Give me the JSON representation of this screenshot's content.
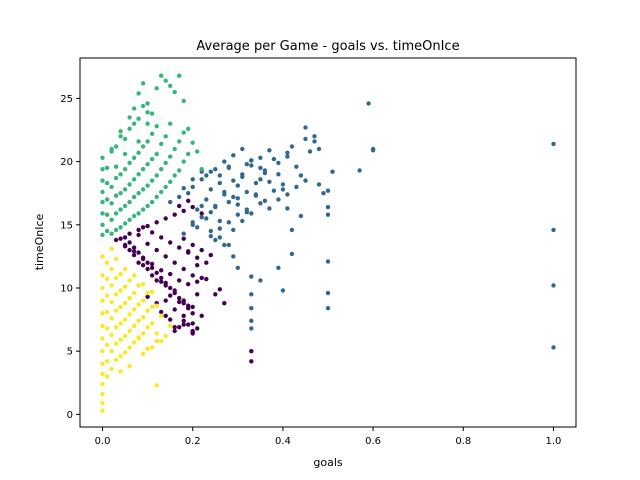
{
  "chart_data": {
    "type": "scatter",
    "title": "Average per Game - goals vs. timeOnIce",
    "xlabel": "goals",
    "ylabel": "timeOnIce",
    "xlim": [
      -0.05,
      1.05
    ],
    "ylim": [
      -1.0,
      28.2
    ],
    "xticks": [
      0.0,
      0.2,
      0.4,
      0.6,
      0.8,
      1.0
    ],
    "xtick_labels": [
      "0.0",
      "0.2",
      "0.4",
      "0.6",
      "0.8",
      "1.0"
    ],
    "yticks": [
      0,
      5,
      10,
      15,
      20,
      25
    ],
    "ytick_labels": [
      "0",
      "5",
      "10",
      "15",
      "20",
      "25"
    ],
    "grid": false,
    "legend": "none",
    "point_color_scale": "viridis",
    "series": [
      {
        "color": "#440154",
        "values_x": [
          0.06,
          0.07,
          0.08,
          0.09,
          0.1,
          0.11,
          0.12,
          0.13,
          0.14,
          0.15,
          0.16,
          0.17,
          0.18,
          0.19,
          0.2,
          0.05,
          0.06,
          0.08,
          0.1,
          0.12,
          0.14,
          0.16,
          0.18,
          0.2,
          0.22,
          0.04,
          0.06,
          0.08,
          0.1,
          0.12,
          0.14,
          0.16,
          0.18,
          0.2,
          0.21,
          0.05,
          0.07,
          0.09,
          0.11,
          0.13,
          0.15,
          0.17,
          0.19,
          0.21,
          0.08,
          0.1,
          0.12,
          0.14,
          0.16,
          0.18,
          0.2,
          0.22,
          0.1,
          0.12,
          0.14,
          0.16,
          0.18,
          0.2,
          0.13,
          0.15,
          0.17,
          0.19,
          0.21,
          0.14,
          0.16,
          0.18,
          0.2,
          0.16,
          0.18,
          0.2,
          0.17,
          0.19,
          0.03,
          0.05,
          0.07,
          0.09,
          0.11,
          0.13,
          0.15,
          0.17,
          0.19,
          0.09,
          0.11,
          0.13,
          0.15,
          0.17,
          0.19,
          0.21,
          0.23,
          0.18,
          0.2,
          0.22,
          0.24,
          0.25,
          0.27,
          0.19,
          0.21,
          0.23,
          0.33,
          0.33,
          0.26,
          0.22,
          0.2
        ],
        "values_y": [
          13.6,
          13.2,
          12.8,
          12.4,
          12.0,
          11.6,
          11.2,
          10.8,
          10.4,
          10.0,
          9.6,
          9.2,
          8.8,
          8.4,
          8.0,
          14.0,
          14.3,
          14.6,
          14.9,
          15.2,
          15.5,
          15.8,
          16.1,
          16.4,
          15.9,
          13.9,
          13.0,
          12.0,
          11.5,
          10.6,
          10.2,
          9.8,
          9.0,
          8.5,
          9.5,
          13.4,
          12.6,
          11.8,
          11.0,
          10.5,
          9.4,
          8.9,
          8.6,
          10.5,
          14.2,
          13.5,
          13.0,
          12.5,
          12.0,
          11.5,
          11.0,
          10.8,
          9.3,
          8.8,
          9.0,
          8.3,
          7.8,
          7.2,
          8.1,
          7.5,
          6.9,
          7.1,
          6.8,
          7.8,
          6.6,
          7.4,
          6.4,
          6.9,
          7.1,
          6.5,
          16.5,
          16.9,
          13.8,
          13.3,
          12.9,
          12.3,
          11.9,
          11.4,
          11.1,
          10.6,
          10.3,
          14.8,
          14.4,
          14.0,
          13.6,
          13.2,
          12.8,
          12.4,
          12.0,
          13.9,
          13.4,
          13.0,
          12.6,
          9.5,
          8.8,
          12.9,
          11.8,
          10.7,
          5.0,
          4.2,
          9.9,
          7.8,
          6.6
        ]
      },
      {
        "color": "#31688e",
        "values_x": [
          0.15,
          0.17,
          0.19,
          0.2,
          0.21,
          0.22,
          0.23,
          0.24,
          0.25,
          0.26,
          0.27,
          0.28,
          0.29,
          0.3,
          0.31,
          0.32,
          0.33,
          0.34,
          0.35,
          0.36,
          0.37,
          0.38,
          0.39,
          0.4,
          0.41,
          0.42,
          0.43,
          0.44,
          0.45,
          0.46,
          0.48,
          0.5,
          0.51,
          0.57,
          0.6,
          0.2,
          0.22,
          0.24,
          0.26,
          0.28,
          0.3,
          0.32,
          0.34,
          0.36,
          0.38,
          0.4,
          0.18,
          0.2,
          0.22,
          0.24,
          0.26,
          0.28,
          0.3,
          0.32,
          0.34,
          0.36,
          0.21,
          0.23,
          0.25,
          0.27,
          0.29,
          0.31,
          0.33,
          0.35,
          0.24,
          0.26,
          0.28,
          0.3,
          0.32,
          0.25,
          0.27,
          0.29,
          0.31,
          0.33,
          0.35,
          0.37,
          0.39,
          0.41,
          0.43,
          0.45,
          0.23,
          0.25,
          0.27,
          0.29,
          0.31,
          0.33,
          0.35,
          0.37,
          0.39,
          0.41,
          0.18,
          0.2,
          0.22,
          0.47,
          0.48,
          0.49,
          0.5,
          0.5,
          0.5,
          0.5,
          0.5,
          0.47,
          0.45,
          0.42,
          0.42,
          0.4,
          0.39,
          0.35,
          0.33,
          0.33,
          0.33,
          0.33,
          0.33,
          0.3,
          0.29,
          0.28,
          0.24,
          0.26,
          1.0,
          1.0,
          1.0,
          1.0,
          0.59,
          0.6,
          0.41,
          0.44
        ],
        "values_y": [
          16.8,
          17.2,
          17.5,
          18.0,
          16.2,
          18.6,
          17.0,
          19.2,
          16.5,
          18.3,
          17.6,
          19.5,
          17.2,
          16.6,
          18.8,
          19.8,
          20.1,
          17.3,
          18.6,
          19.1,
          18.4,
          20.2,
          19.0,
          17.8,
          20.4,
          21.2,
          19.6,
          18.9,
          21.8,
          20.8,
          21.0,
          17.7,
          19.2,
          19.3,
          21.0,
          15.0,
          15.6,
          16.0,
          15.3,
          16.8,
          17.1,
          16.2,
          17.4,
          16.9,
          17.7,
          18.2,
          14.3,
          15.2,
          16.5,
          17.8,
          18.9,
          19.6,
          18.1,
          17.6,
          18.3,
          19.3,
          14.8,
          15.5,
          16.4,
          17.4,
          18.5,
          19.0,
          19.7,
          20.3,
          14.1,
          14.7,
          15.2,
          15.8,
          16.0,
          13.8,
          13.4,
          14.6,
          15.3,
          15.9,
          16.7,
          16.3,
          17.0,
          17.4,
          18.0,
          18.5,
          18.9,
          19.4,
          20.0,
          20.5,
          21.0,
          20.1,
          19.5,
          20.9,
          19.9,
          20.7,
          17.9,
          18.6,
          19.2,
          22.0,
          18.2,
          17.5,
          16.4,
          15.8,
          12.1,
          9.6,
          8.4,
          21.6,
          22.7,
          14.6,
          12.7,
          9.8,
          11.6,
          10.6,
          7.4,
          6.8,
          8.4,
          9.5,
          10.9,
          11.6,
          12.5,
          13.4,
          14.5,
          14.0,
          21.4,
          14.6,
          10.2,
          5.3,
          24.6,
          20.9,
          16.3,
          15.7
        ]
      },
      {
        "color": "#35b779",
        "values_x": [
          0.0,
          0.0,
          0.0,
          0.0,
          0.0,
          0.0,
          0.0,
          0.0,
          0.01,
          0.01,
          0.01,
          0.01,
          0.01,
          0.02,
          0.02,
          0.02,
          0.02,
          0.02,
          0.03,
          0.03,
          0.03,
          0.03,
          0.03,
          0.04,
          0.04,
          0.04,
          0.04,
          0.04,
          0.05,
          0.05,
          0.05,
          0.05,
          0.05,
          0.06,
          0.06,
          0.06,
          0.06,
          0.06,
          0.07,
          0.07,
          0.07,
          0.07,
          0.07,
          0.08,
          0.08,
          0.08,
          0.08,
          0.08,
          0.09,
          0.09,
          0.09,
          0.09,
          0.09,
          0.1,
          0.1,
          0.1,
          0.1,
          0.1,
          0.11,
          0.11,
          0.11,
          0.11,
          0.12,
          0.12,
          0.12,
          0.12,
          0.13,
          0.13,
          0.13,
          0.14,
          0.14,
          0.14,
          0.15,
          0.15,
          0.15,
          0.16,
          0.16,
          0.17,
          0.17,
          0.18,
          0.18,
          0.19,
          0.2,
          0.21,
          0.22,
          0.08,
          0.09,
          0.1,
          0.12,
          0.13,
          0.14,
          0.15,
          0.16,
          0.17,
          0.18,
          0.19,
          0.06,
          0.07,
          0.11,
          0.03,
          0.05,
          0.02,
          0.04,
          0.08,
          0.1
        ],
        "values_y": [
          14.2,
          15.0,
          15.9,
          16.8,
          17.6,
          18.5,
          19.4,
          20.3,
          14.5,
          15.8,
          17.0,
          18.3,
          19.5,
          14.3,
          15.4,
          16.7,
          18.0,
          20.8,
          14.6,
          15.9,
          17.3,
          18.7,
          21.2,
          14.8,
          16.2,
          17.5,
          19.0,
          22.0,
          15.1,
          16.5,
          17.8,
          19.4,
          21.8,
          15.4,
          16.8,
          18.2,
          19.9,
          22.6,
          15.7,
          17.2,
          18.6,
          20.3,
          23.0,
          15.9,
          17.5,
          19.0,
          20.7,
          23.4,
          16.2,
          17.8,
          19.4,
          21.2,
          24.4,
          16.5,
          18.1,
          19.8,
          21.6,
          23.9,
          16.8,
          18.5,
          20.2,
          22.2,
          17.2,
          18.9,
          20.6,
          22.8,
          17.6,
          19.4,
          21.4,
          18.0,
          19.9,
          22.0,
          18.4,
          20.4,
          23.0,
          18.9,
          21.0,
          19.3,
          21.6,
          20.0,
          22.3,
          20.6,
          21.5,
          20.8,
          19.4,
          25.4,
          26.2,
          24.6,
          25.8,
          26.8,
          26.4,
          26.0,
          25.5,
          26.8,
          24.8,
          22.6,
          23.5,
          24.2,
          23.8,
          19.6,
          20.6,
          21.0,
          22.4,
          21.6,
          23.0
        ]
      },
      {
        "color": "#fde725",
        "values_x": [
          0.0,
          0.0,
          0.0,
          0.0,
          0.0,
          0.0,
          0.0,
          0.0,
          0.0,
          0.0,
          0.0,
          0.0,
          0.0,
          0.0,
          0.01,
          0.01,
          0.01,
          0.01,
          0.01,
          0.01,
          0.01,
          0.01,
          0.02,
          0.02,
          0.02,
          0.02,
          0.02,
          0.02,
          0.02,
          0.03,
          0.03,
          0.03,
          0.03,
          0.03,
          0.03,
          0.03,
          0.04,
          0.04,
          0.04,
          0.04,
          0.04,
          0.04,
          0.05,
          0.05,
          0.05,
          0.05,
          0.05,
          0.05,
          0.06,
          0.06,
          0.06,
          0.06,
          0.06,
          0.07,
          0.07,
          0.07,
          0.07,
          0.07,
          0.08,
          0.08,
          0.08,
          0.08,
          0.09,
          0.09,
          0.09,
          0.09,
          0.1,
          0.1,
          0.1,
          0.11,
          0.11,
          0.11,
          0.12,
          0.12,
          0.12,
          0.13,
          0.13,
          0.14,
          0.15,
          0.09,
          0.11,
          0.12,
          0.1,
          0.08,
          0.06,
          0.04,
          0.02
        ],
        "values_y": [
          0.3,
          0.9,
          1.6,
          2.4,
          3.2,
          4.0,
          5.0,
          6.0,
          7.0,
          8.0,
          9.0,
          10.0,
          11.0,
          12.5,
          3.0,
          4.2,
          5.5,
          6.8,
          8.1,
          9.4,
          10.7,
          12.0,
          3.6,
          5.0,
          6.3,
          7.6,
          8.9,
          10.2,
          11.5,
          4.3,
          5.6,
          6.9,
          8.2,
          9.5,
          10.8,
          12.3,
          4.6,
          5.9,
          7.2,
          8.5,
          9.8,
          11.1,
          4.9,
          6.2,
          7.5,
          8.8,
          10.1,
          11.5,
          5.3,
          6.6,
          7.9,
          9.2,
          10.6,
          5.7,
          7.0,
          8.3,
          9.6,
          11.0,
          6.1,
          7.4,
          8.7,
          10.2,
          6.4,
          7.7,
          9.0,
          10.3,
          6.9,
          8.2,
          9.6,
          7.2,
          8.5,
          9.7,
          2.3,
          6.4,
          8.6,
          5.8,
          7.8,
          6.2,
          7.0,
          4.8,
          5.3,
          5.8,
          5.2,
          6.0,
          3.8,
          3.4,
          13.1
        ]
      }
    ]
  }
}
